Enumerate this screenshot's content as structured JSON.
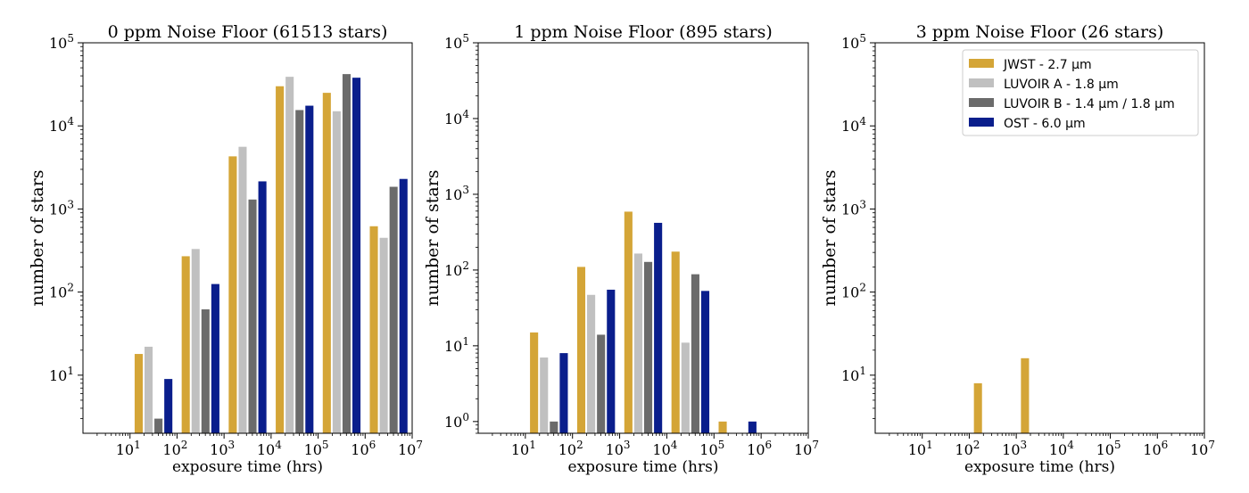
{
  "chart_data": [
    {
      "type": "bar",
      "title": "0 ppm Noise Floor (61513 stars)",
      "xlabel": "exposure time (hrs)",
      "ylabel": "number of stars",
      "xscale": "log",
      "yscale": "log",
      "xlim": [
        1,
        10000000
      ],
      "ylim": [
        2,
        100000
      ],
      "xticks": [
        10,
        100,
        1000,
        10000,
        100000,
        1000000,
        10000000
      ],
      "yticks": [
        10,
        100,
        1000,
        10000,
        100000
      ],
      "grid": false,
      "bin_edges": [
        10,
        100,
        1000,
        10000,
        100000,
        1000000,
        10000000
      ],
      "series": [
        {
          "name": "JWST - 2.7 µm",
          "color": "#D4A537",
          "values": [
            18,
            270,
            4300,
            30000,
            25000,
            620
          ]
        },
        {
          "name": "LUVOIR A - 1.8 µm",
          "color": "#C0C0C0",
          "values": [
            22,
            330,
            5600,
            39000,
            15000,
            450
          ]
        },
        {
          "name": "LUVOIR B - 1.4 µm / 1.8 µm",
          "color": "#6B6B6B",
          "values": [
            3,
            62,
            1300,
            15500,
            42000,
            1850
          ]
        },
        {
          "name": "OST - 6.0 µm",
          "color": "#0A1E8C",
          "values": [
            9,
            125,
            2150,
            17500,
            38000,
            2300
          ]
        }
      ],
      "legend": false
    },
    {
      "type": "bar",
      "title": "1 ppm Noise Floor (895 stars)",
      "xlabel": "exposure time (hrs)",
      "ylabel": "number of stars",
      "xscale": "log",
      "yscale": "log",
      "xlim": [
        1,
        10000000
      ],
      "ylim": [
        0.7,
        100000
      ],
      "xticks": [
        10,
        100,
        1000,
        10000,
        100000,
        1000000,
        10000000
      ],
      "yticks": [
        1,
        10,
        100,
        1000,
        10000,
        100000
      ],
      "grid": false,
      "bin_edges": [
        10,
        100,
        1000,
        10000,
        100000,
        1000000,
        10000000
      ],
      "series": [
        {
          "name": "JWST - 2.7 µm",
          "color": "#D4A537",
          "values": [
            15,
            110,
            590,
            175,
            1,
            0
          ]
        },
        {
          "name": "LUVOIR A - 1.8 µm",
          "color": "#C0C0C0",
          "values": [
            7,
            47,
            165,
            11,
            0,
            0
          ]
        },
        {
          "name": "LUVOIR B - 1.4 µm / 1.8 µm",
          "color": "#6B6B6B",
          "values": [
            1,
            14,
            128,
            88,
            0,
            0
          ]
        },
        {
          "name": "OST - 6.0 µm",
          "color": "#0A1E8C",
          "values": [
            8,
            55,
            420,
            53,
            1,
            0
          ]
        }
      ],
      "legend": false
    },
    {
      "type": "bar",
      "title": "3 ppm Noise Floor (26 stars)",
      "xlabel": "exposure time (hrs)",
      "ylabel": "number of stars",
      "xscale": "log",
      "yscale": "log",
      "xlim": [
        1,
        10000000
      ],
      "ylim": [
        2,
        100000
      ],
      "xticks": [
        10,
        100,
        1000,
        10000,
        100000,
        1000000,
        10000000
      ],
      "yticks": [
        10,
        100,
        1000,
        10000,
        100000
      ],
      "grid": false,
      "bin_edges": [
        10,
        100,
        1000,
        10000,
        100000,
        1000000,
        10000000
      ],
      "series": [
        {
          "name": "JWST - 2.7 µm",
          "color": "#D4A537",
          "values": [
            0,
            8,
            16,
            2,
            0,
            0
          ]
        },
        {
          "name": "LUVOIR A - 1.8 µm",
          "color": "#C0C0C0",
          "values": [
            0,
            0,
            0,
            0,
            0,
            0
          ]
        },
        {
          "name": "LUVOIR B - 1.4 µm / 1.8 µm",
          "color": "#6B6B6B",
          "values": [
            0,
            0,
            0,
            0,
            0,
            0
          ]
        },
        {
          "name": "OST - 6.0 µm",
          "color": "#0A1E8C",
          "values": [
            0,
            2,
            2,
            0,
            0,
            0
          ]
        }
      ],
      "legend": true,
      "legend_position": "top-right"
    }
  ]
}
